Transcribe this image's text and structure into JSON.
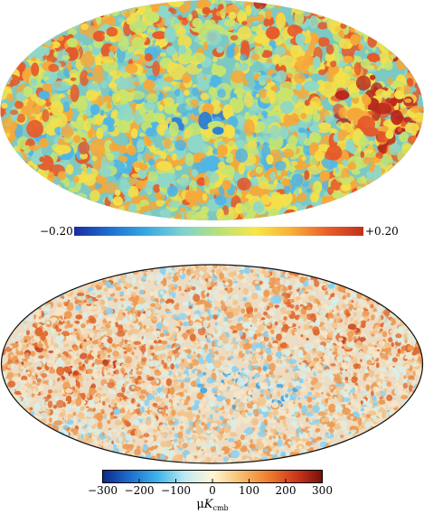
{
  "top_map": {
    "colorbar": {
      "min_label": "−0.20",
      "max_label": "+0.20",
      "colors": [
        "#1a2ea0",
        "#1f6fd0",
        "#39a9e0",
        "#7fd2d0",
        "#b9e07a",
        "#f5e84a",
        "#f7b03a",
        "#e8602a",
        "#c0301e"
      ]
    },
    "palette": [
      "#1b3ea8",
      "#2a79d4",
      "#4fb5e6",
      "#8fd8c8",
      "#c8e46e",
      "#f4e04a",
      "#f6a83a",
      "#e55a2a",
      "#b8281c"
    ]
  },
  "bottom_map": {
    "colorbar": {
      "ticks": [
        "−300",
        "−200",
        "−100",
        "0",
        "100",
        "200",
        "300"
      ],
      "unit_main": "μ",
      "unit_italic": "K",
      "unit_sub": "cmb",
      "colors": [
        "#0a2a8a",
        "#1e6fd0",
        "#3db4e8",
        "#bfe9f0",
        "#fff6d6",
        "#f6c070",
        "#f08030",
        "#d03a1c",
        "#7a1008"
      ]
    },
    "palette": [
      "#2a6fc8",
      "#4aa6e0",
      "#8cd0ee",
      "#d8eee8",
      "#f5e6c8",
      "#f2c38a",
      "#ee9a52",
      "#e06a30",
      "#c8401e"
    ]
  }
}
